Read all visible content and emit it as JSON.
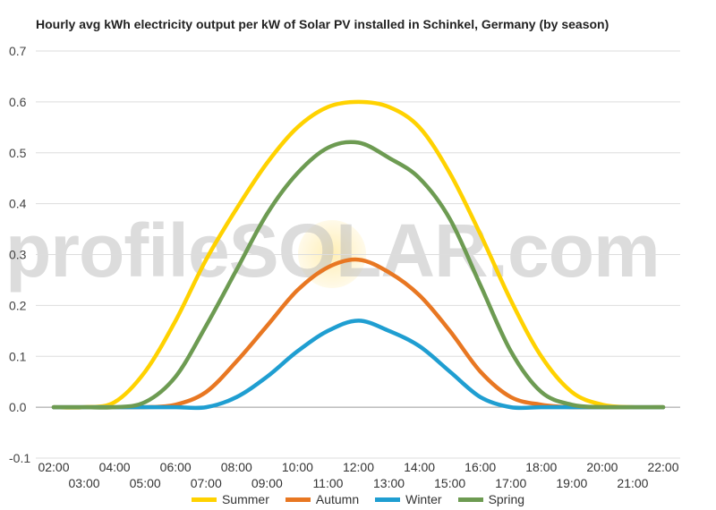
{
  "chart_data": {
    "type": "line",
    "title": "Hourly avg kWh electricity output per kW of Solar PV installed in Schinkel, Germany (by season)",
    "x": [
      "02:00",
      "03:00",
      "04:00",
      "05:00",
      "06:00",
      "07:00",
      "08:00",
      "09:00",
      "10:00",
      "11:00",
      "12:00",
      "13:00",
      "14:00",
      "15:00",
      "16:00",
      "17:00",
      "18:00",
      "19:00",
      "20:00",
      "21:00",
      "22:00"
    ],
    "ylim": [
      -0.1,
      0.7
    ],
    "yticks": [
      "0.7",
      "0.6",
      "0.5",
      "0.4",
      "0.3",
      "0.2",
      "0.1",
      "0.0",
      "-0.1"
    ],
    "grid": true,
    "legend_position": "bottom",
    "series": [
      {
        "name": "Summer",
        "color": "#ffd200",
        "values": [
          0,
          0,
          0.01,
          0.07,
          0.17,
          0.29,
          0.39,
          0.48,
          0.55,
          0.59,
          0.6,
          0.59,
          0.55,
          0.46,
          0.34,
          0.21,
          0.1,
          0.03,
          0.005,
          0,
          0
        ]
      },
      {
        "name": "Autumn",
        "color": "#e87722",
        "values": [
          0,
          0,
          0,
          0,
          0.005,
          0.03,
          0.09,
          0.16,
          0.23,
          0.275,
          0.29,
          0.265,
          0.22,
          0.15,
          0.07,
          0.02,
          0.005,
          0,
          0,
          0,
          0
        ]
      },
      {
        "name": "Winter",
        "color": "#1f9ed1",
        "values": [
          0,
          0,
          0,
          0,
          0,
          0,
          0.02,
          0.06,
          0.11,
          0.15,
          0.17,
          0.15,
          0.12,
          0.07,
          0.02,
          0,
          0,
          0,
          0,
          0,
          0
        ]
      },
      {
        "name": "Spring",
        "color": "#6d9b52",
        "values": [
          0,
          0,
          0,
          0.01,
          0.06,
          0.16,
          0.27,
          0.38,
          0.46,
          0.51,
          0.52,
          0.49,
          0.45,
          0.37,
          0.24,
          0.11,
          0.03,
          0.005,
          0,
          0,
          0
        ]
      }
    ]
  },
  "watermark": "profileSOLAR.com"
}
